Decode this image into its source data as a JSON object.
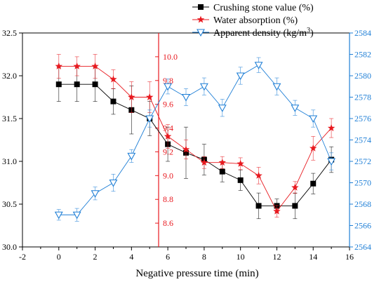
{
  "chart_data": {
    "type": "line",
    "xlabel": "Negative pressure time (min)",
    "xlim": [
      -2,
      16
    ],
    "x_ticks": [
      -2,
      0,
      2,
      4,
      6,
      8,
      10,
      12,
      14,
      16
    ],
    "x": [
      0,
      1,
      2,
      3,
      4,
      5,
      6,
      7,
      8,
      9,
      10,
      11,
      12,
      13,
      14,
      15
    ],
    "axes": [
      {
        "id": "left",
        "ylim": [
          30.0,
          32.5
        ],
        "ticks": [
          "30.0",
          "30.5",
          "31.0",
          "31.5",
          "32.0",
          "32.5"
        ],
        "color": "#000000"
      },
      {
        "id": "middle",
        "ylim": [
          8.4,
          10.2
        ],
        "ticks": [
          "8.6",
          "8.8",
          "9.0",
          "9.2",
          "9.4",
          "9.6",
          "9.8",
          "10.0"
        ],
        "color": "#e8191f"
      },
      {
        "id": "right",
        "ylim": [
          2564,
          2584
        ],
        "ticks": [
          "2564",
          "2566",
          "2568",
          "2570",
          "2572",
          "2574",
          "2576",
          "2578",
          "2580",
          "2582",
          "2584"
        ],
        "color": "#1f7fd6"
      }
    ],
    "series": [
      {
        "name": "Crushing stone value (%)",
        "axis": "left",
        "color": "#000000",
        "marker": "square",
        "values": [
          31.9,
          31.9,
          31.9,
          31.7,
          31.6,
          31.5,
          31.2,
          31.1,
          31.02,
          30.88,
          30.78,
          30.48,
          30.48,
          30.48,
          30.74,
          31.02
        ],
        "errors": [
          0.2,
          0.2,
          0.2,
          0.15,
          0.28,
          0.2,
          0.2,
          0.3,
          0.18,
          0.12,
          0.12,
          0.15,
          0.08,
          0.15,
          0.12,
          0.15
        ]
      },
      {
        "name": "Water absorption (%)",
        "axis": "middle",
        "color": "#e8191f",
        "marker": "star",
        "values": [
          9.92,
          9.92,
          9.92,
          9.81,
          9.66,
          9.66,
          9.33,
          9.22,
          9.11,
          9.11,
          9.1,
          9.0,
          8.7,
          8.9,
          9.23,
          9.4
        ],
        "errors": [
          0.1,
          0.08,
          0.1,
          0.08,
          0.13,
          0.13,
          0.1,
          0.08,
          0.05,
          0.05,
          0.05,
          0.07,
          0.05,
          0.05,
          0.1,
          0.08
        ]
      },
      {
        "name": "Apparent density (kg/m",
        "name_sup": "3",
        "name_end": ")",
        "axis": "right",
        "color": "#1f7fd6",
        "marker": "triangle-down",
        "values": [
          2567.0,
          2567.0,
          2569.0,
          2570.0,
          2572.5,
          2576.0,
          2579.0,
          2578.0,
          2579.0,
          2577.0,
          2580.0,
          2581.0,
          2579.0,
          2577.0,
          2576.0,
          2572.0
        ],
        "errors": [
          0.5,
          0.6,
          0.6,
          0.8,
          0.6,
          0.8,
          0.7,
          0.8,
          0.8,
          0.8,
          0.8,
          0.7,
          0.8,
          0.7,
          0.8,
          0.8
        ]
      }
    ]
  }
}
